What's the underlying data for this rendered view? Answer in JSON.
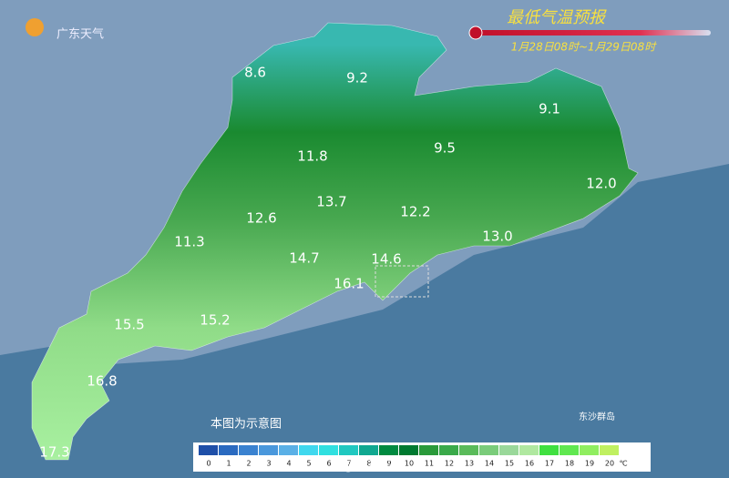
{
  "header": {
    "title": "最低气温预报",
    "period": "1月28日08时~1月29日08时"
  },
  "logo": "广东天气",
  "temperatures": [
    "8.6",
    "9.2",
    "9.1",
    "11.8",
    "9.5",
    "12.0",
    "13.7",
    "12.6",
    "12.2",
    "11.3",
    "13.0",
    "14.7",
    "14.6",
    "16.1",
    "15.5",
    "15.2",
    "16.8",
    "17.3"
  ],
  "note": "本图为示意图",
  "dongsha": "东沙群岛",
  "watermark": "@广东天气",
  "legend": {
    "labels": [
      "0",
      "1",
      "2",
      "3",
      "4",
      "5",
      "6",
      "7",
      "8",
      "9",
      "10",
      "11",
      "12",
      "13",
      "14",
      "15",
      "16",
      "17",
      "18",
      "19",
      "20"
    ],
    "colors": [
      "#1e4fa8",
      "#2a6ac0",
      "#3a82d0",
      "#4a98dc",
      "#5ab0e6",
      "#40d8ee",
      "#30e0e0",
      "#20c8c0",
      "#10a890",
      "#008a40",
      "#007a30",
      "#2a9a3a",
      "#3aaa4a",
      "#5abb5a",
      "#7acc7a",
      "#9ad89a",
      "#b0e8a0",
      "#40e040",
      "#60e850",
      "#90ee60",
      "#c0f060"
    ],
    "unit": "℃"
  }
}
